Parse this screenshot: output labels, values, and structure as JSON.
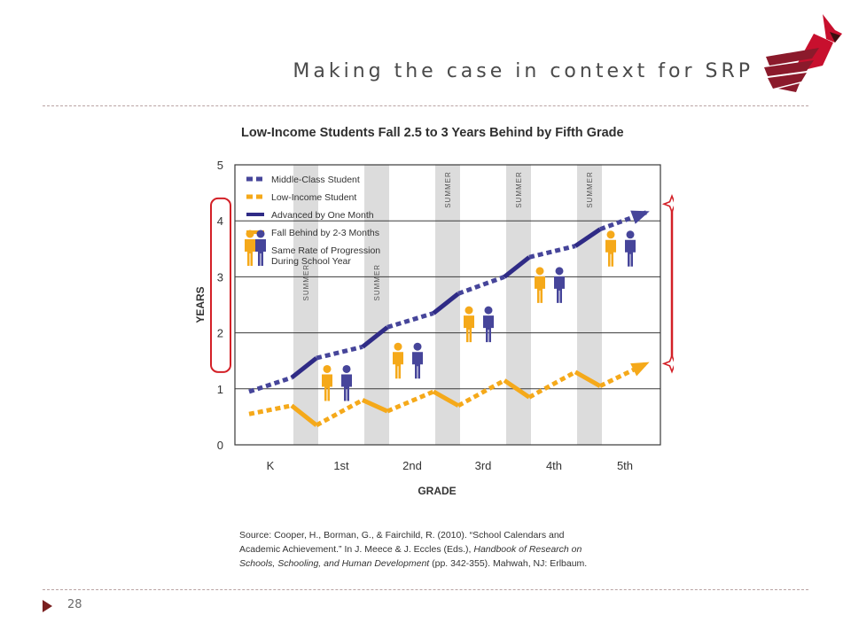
{
  "slide": {
    "title": "Making the case in context for SRP",
    "page_number": "28",
    "accent_color": "#8b1a2b"
  },
  "logo": {
    "icon": "cardinal-bird-logo"
  },
  "chart_data": {
    "type": "line",
    "title": "Low-Income Students Fall 2.5 to 3 Years Behind by Fifth Grade",
    "xlabel": "GRADE",
    "ylabel": "YEARS",
    "categories": [
      "K",
      "1st",
      "2nd",
      "3rd",
      "4th",
      "5th"
    ],
    "yticks": [
      "0",
      "1",
      "2",
      "3",
      "4",
      "5"
    ],
    "ylim": [
      0,
      5
    ],
    "grid": "horizontal",
    "summer_label": "SUMMER",
    "legend": {
      "placement": "top-left",
      "items": [
        {
          "label": "Middle-Class Student",
          "kind": "dotted-line",
          "color": "#46459a"
        },
        {
          "label": "Low-Income Student",
          "kind": "dotted-line",
          "color": "#f5a91a"
        },
        {
          "label": "Advanced by One Month",
          "kind": "solid-line",
          "color": "#2f2b86"
        },
        {
          "label": "Fall Behind by 2-3 Months",
          "kind": "solid-line",
          "color": "#f5a91a"
        },
        {
          "label": "Same Rate of Progression During School Year",
          "kind": "people-icons"
        }
      ]
    },
    "series": [
      {
        "name": "Middle-Class Student",
        "color": "#46459a",
        "points": [
          [
            -0.3,
            0.95
          ],
          [
            0.3,
            1.2
          ],
          [
            0.65,
            1.55
          ],
          [
            1.3,
            1.75
          ],
          [
            1.65,
            2.1
          ],
          [
            2.3,
            2.35
          ],
          [
            2.65,
            2.7
          ],
          [
            3.3,
            3.0
          ],
          [
            3.65,
            3.35
          ],
          [
            4.3,
            3.55
          ],
          [
            4.65,
            3.85
          ],
          [
            5.3,
            4.15
          ]
        ]
      },
      {
        "name": "Low-Income Student",
        "color": "#f5a91a",
        "points": [
          [
            -0.3,
            0.55
          ],
          [
            0.3,
            0.7
          ],
          [
            0.65,
            0.35
          ],
          [
            1.3,
            0.8
          ],
          [
            1.65,
            0.6
          ],
          [
            2.3,
            0.95
          ],
          [
            2.65,
            0.7
          ],
          [
            3.3,
            1.15
          ],
          [
            3.65,
            0.85
          ],
          [
            4.3,
            1.3
          ],
          [
            4.65,
            1.05
          ],
          [
            5.3,
            1.45
          ]
        ]
      }
    ],
    "source_lines": [
      "Source: Cooper, H., Borman, G., & Fairchild, R. (2010). “School Calendars and",
      "Academic Achievement.” In J. Meece & J. Eccles (Eds.), Handbook of Research on",
      "Schools, Schooling, and Human Development (pp. 342-355). Mahwah, NJ: Erlbaum."
    ],
    "annotation_color": "#d32027"
  }
}
